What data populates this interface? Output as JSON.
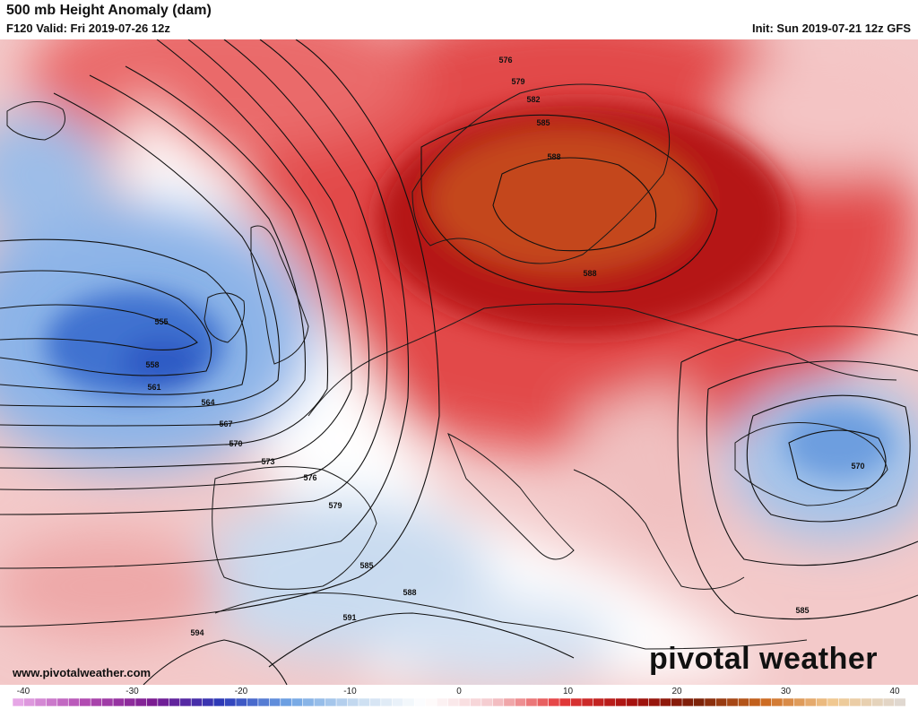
{
  "header": {
    "title": "500 mb Height Anomaly (dam)",
    "valid": "F120 Valid: Fri 2019-07-26 12z",
    "init": "Init: Sun 2019-07-21 12z GFS"
  },
  "footer": {
    "url": "www.pivotalweather.com",
    "brand": "pivotal weather"
  },
  "colorbar": {
    "ticks": [
      "-40",
      "-30",
      "-20",
      "-10",
      "0",
      "10",
      "20",
      "30",
      "40"
    ],
    "colors": [
      "#e6a6e6",
      "#b04ab0",
      "#7a1a90",
      "#2a3ab8",
      "#6fa4e4",
      "#c8dcf0",
      "#ffffff",
      "#f4c8cc",
      "#e43a3a",
      "#a8100e",
      "#7a2008",
      "#cc6a20",
      "#f0c890",
      "#e0d8d0"
    ]
  },
  "contours": [
    {
      "label": "555"
    },
    {
      "label": "558"
    },
    {
      "label": "561"
    },
    {
      "label": "564"
    },
    {
      "label": "567"
    },
    {
      "label": "570"
    },
    {
      "label": "573"
    },
    {
      "label": "576"
    },
    {
      "label": "579"
    },
    {
      "label": "582"
    },
    {
      "label": "585"
    },
    {
      "label": "588"
    },
    {
      "label": "591"
    },
    {
      "label": "594"
    }
  ],
  "map_labels": {
    "l555": "555",
    "l558": "558",
    "l561": "561",
    "l564": "564",
    "l567": "567",
    "l570w": "570",
    "l573": "573",
    "l576w": "576",
    "l579w": "579",
    "l585w": "585",
    "l588s": "588",
    "l591": "591",
    "l594": "594",
    "l576n": "576",
    "l579n": "579",
    "l582n": "582",
    "l585n": "585",
    "l588n": "588",
    "l588c": "588",
    "l570e": "570",
    "l585e": "585"
  }
}
